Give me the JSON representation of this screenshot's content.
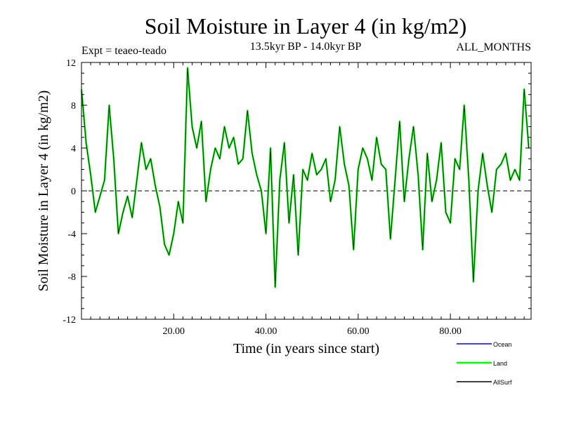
{
  "chart_data": {
    "type": "line",
    "title": "Soil Moisture in Layer 4 (in kg/m2)",
    "subtitle": "13.5kyr BP - 14.0kyr BP",
    "experiment": "Expt = teaeo-teado",
    "season": "ALL_MONTHS",
    "xlabel": "Time (in years since start)",
    "ylabel": "Soil Moisture in Layer 4 (in kg/m2)",
    "xlim": [
      0,
      97.5
    ],
    "ylim": [
      -12,
      12
    ],
    "x_ticks": [
      20,
      40,
      60,
      80
    ],
    "x_tick_labels": [
      "20.00",
      "40.00",
      "60.00",
      "80.00"
    ],
    "y_ticks": [
      -12,
      -8,
      -4,
      0,
      4,
      8,
      12
    ],
    "y_tick_labels": [
      "-12",
      "-8",
      "-4",
      "0",
      "4",
      "8",
      "12"
    ],
    "zero_line": true,
    "grid": false,
    "legend": {
      "placement": "bottom-right",
      "entries": [
        {
          "name": "Ocean",
          "color": "#0000ff"
        },
        {
          "name": "Land",
          "color": "#00ff00"
        },
        {
          "name": "AllSurf",
          "color": "#000000"
        }
      ]
    },
    "series": [
      {
        "name": "Land",
        "color": "#00ff00",
        "x": [
          0,
          1,
          2,
          3,
          4,
          5,
          6,
          7,
          8,
          9,
          10,
          11,
          12,
          13,
          14,
          15,
          16,
          17,
          18,
          19,
          20,
          21,
          22,
          23,
          24,
          25,
          26,
          27,
          28,
          29,
          30,
          31,
          32,
          33,
          34,
          35,
          36,
          37,
          38,
          39,
          40,
          41,
          42,
          43,
          44,
          45,
          46,
          47,
          48,
          49,
          50,
          51,
          52,
          53,
          54,
          55,
          56,
          57,
          58,
          59,
          60,
          61,
          62,
          63,
          64,
          65,
          66,
          67,
          68,
          69,
          70,
          71,
          72,
          73,
          74,
          75,
          76,
          77,
          78,
          79,
          80,
          81,
          82,
          83,
          84,
          85,
          86,
          87,
          88,
          89,
          90,
          91,
          92,
          93,
          94,
          95,
          96,
          97
        ],
        "values": [
          9.5,
          4.5,
          1.5,
          -2.0,
          -0.5,
          1.0,
          8.0,
          3.0,
          -4.0,
          -2.0,
          -0.5,
          -2.5,
          1.0,
          4.5,
          2.0,
          3.0,
          0.5,
          -1.5,
          -5.0,
          -6.0,
          -4.0,
          -1.0,
          -3.0,
          11.5,
          6.0,
          4.0,
          6.5,
          -1.0,
          2.0,
          4.0,
          3.0,
          6.0,
          4.0,
          5.0,
          2.5,
          3.0,
          7.5,
          3.5,
          1.5,
          0.0,
          -4.0,
          4.0,
          -9.0,
          1.0,
          4.5,
          -3.0,
          1.5,
          -6.0,
          2.0,
          1.0,
          3.5,
          1.5,
          2.0,
          3.0,
          -1.0,
          1.0,
          6.0,
          2.5,
          0.5,
          -5.5,
          2.0,
          4.0,
          3.0,
          1.0,
          5.0,
          2.5,
          2.0,
          -4.5,
          1.0,
          6.5,
          -1.0,
          3.0,
          6.0,
          1.5,
          -5.5,
          3.5,
          -1.0,
          1.0,
          4.5,
          -2.0,
          -3.0,
          3.0,
          2.0,
          8.0,
          1.0,
          -8.5,
          0.0,
          3.5,
          0.5,
          -2.0,
          2.0,
          2.5,
          3.5,
          1.0,
          2.0,
          1.0,
          9.5,
          4.0
        ]
      },
      {
        "name": "AllSurf",
        "color": "#000000",
        "x": [
          0,
          1,
          2,
          3,
          4,
          5,
          6,
          7,
          8,
          9,
          10,
          11,
          12,
          13,
          14,
          15,
          16,
          17,
          18,
          19,
          20,
          21,
          22,
          23,
          24,
          25,
          26,
          27,
          28,
          29,
          30,
          31,
          32,
          33,
          34,
          35,
          36,
          37,
          38,
          39,
          40,
          41,
          42,
          43,
          44,
          45,
          46,
          47,
          48,
          49,
          50,
          51,
          52,
          53,
          54,
          55,
          56,
          57,
          58,
          59,
          60,
          61,
          62,
          63,
          64,
          65,
          66,
          67,
          68,
          69,
          70,
          71,
          72,
          73,
          74,
          75,
          76,
          77,
          78,
          79,
          80,
          81,
          82,
          83,
          84,
          85,
          86,
          87,
          88,
          89,
          90,
          91,
          92,
          93,
          94,
          95,
          96,
          97
        ],
        "values": [
          9.5,
          4.5,
          1.5,
          -2.0,
          -0.5,
          1.0,
          8.0,
          3.0,
          -4.0,
          -2.0,
          -0.5,
          -2.5,
          1.0,
          4.5,
          2.0,
          3.0,
          0.5,
          -1.5,
          -5.0,
          -6.0,
          -4.0,
          -1.0,
          -3.0,
          11.5,
          6.0,
          4.0,
          6.5,
          -1.0,
          2.0,
          4.0,
          3.0,
          6.0,
          4.0,
          5.0,
          2.5,
          3.0,
          7.5,
          3.5,
          1.5,
          0.0,
          -4.0,
          4.0,
          -9.0,
          1.0,
          4.5,
          -3.0,
          1.5,
          -6.0,
          2.0,
          1.0,
          3.5,
          1.5,
          2.0,
          3.0,
          -1.0,
          1.0,
          6.0,
          2.5,
          0.5,
          -5.5,
          2.0,
          4.0,
          3.0,
          1.0,
          5.0,
          2.5,
          2.0,
          -4.5,
          1.0,
          6.5,
          -1.0,
          3.0,
          6.0,
          1.5,
          -5.5,
          3.5,
          -1.0,
          1.0,
          4.5,
          -2.0,
          -3.0,
          3.0,
          2.0,
          8.0,
          1.0,
          -8.5,
          0.0,
          3.5,
          0.5,
          -2.0,
          2.0,
          2.5,
          3.5,
          1.0,
          2.0,
          1.0,
          9.5,
          4.0
        ]
      }
    ]
  }
}
